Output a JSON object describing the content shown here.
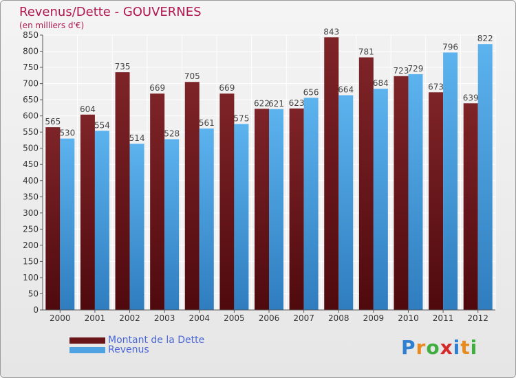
{
  "header": {
    "title": "Revenus/Dette - GOUVERNES",
    "subtitle": "(en milliers d'€)"
  },
  "legend": {
    "debt_label": "Montant de la Dette",
    "revenue_label": "Revenus"
  },
  "logo": {
    "text": "Proxiti",
    "letters": [
      "P",
      "r",
      "o",
      "x",
      "i",
      "t",
      "i"
    ],
    "colors": [
      "#2e7fd1",
      "#e98a1e",
      "#3fae3f",
      "#d42a2a",
      "#2e7fd1",
      "#e98a1e",
      "#3fae3f"
    ]
  },
  "colors": {
    "debt": "#7a1e22",
    "debt_dark": "#4f0a0e",
    "revenue": "#5ab0ec",
    "revenue_dark": "#2f7dbf",
    "title": "#b0184f",
    "legend_text": "#4a67d6"
  },
  "chart_data": {
    "type": "bar",
    "categories": [
      "2000",
      "2001",
      "2002",
      "2003",
      "2004",
      "2005",
      "2006",
      "2007",
      "2008",
      "2009",
      "2010",
      "2011",
      "2012"
    ],
    "series": [
      {
        "name": "Montant de la Dette",
        "values": [
          565,
          604,
          735,
          669,
          705,
          669,
          622,
          623,
          843,
          781,
          723,
          673,
          639
        ]
      },
      {
        "name": "Revenus",
        "values": [
          530,
          554,
          514,
          528,
          561,
          575,
          621,
          656,
          664,
          684,
          729,
          796,
          822
        ]
      }
    ],
    "title": "Revenus/Dette - GOUVERNES",
    "subtitle": "(en milliers d'€)",
    "ylim": [
      0,
      850
    ],
    "yticks": [
      0,
      50,
      100,
      150,
      200,
      250,
      300,
      350,
      400,
      450,
      500,
      550,
      600,
      650,
      700,
      750,
      800,
      850
    ],
    "grid": true,
    "legend_position": "bottom-left"
  }
}
